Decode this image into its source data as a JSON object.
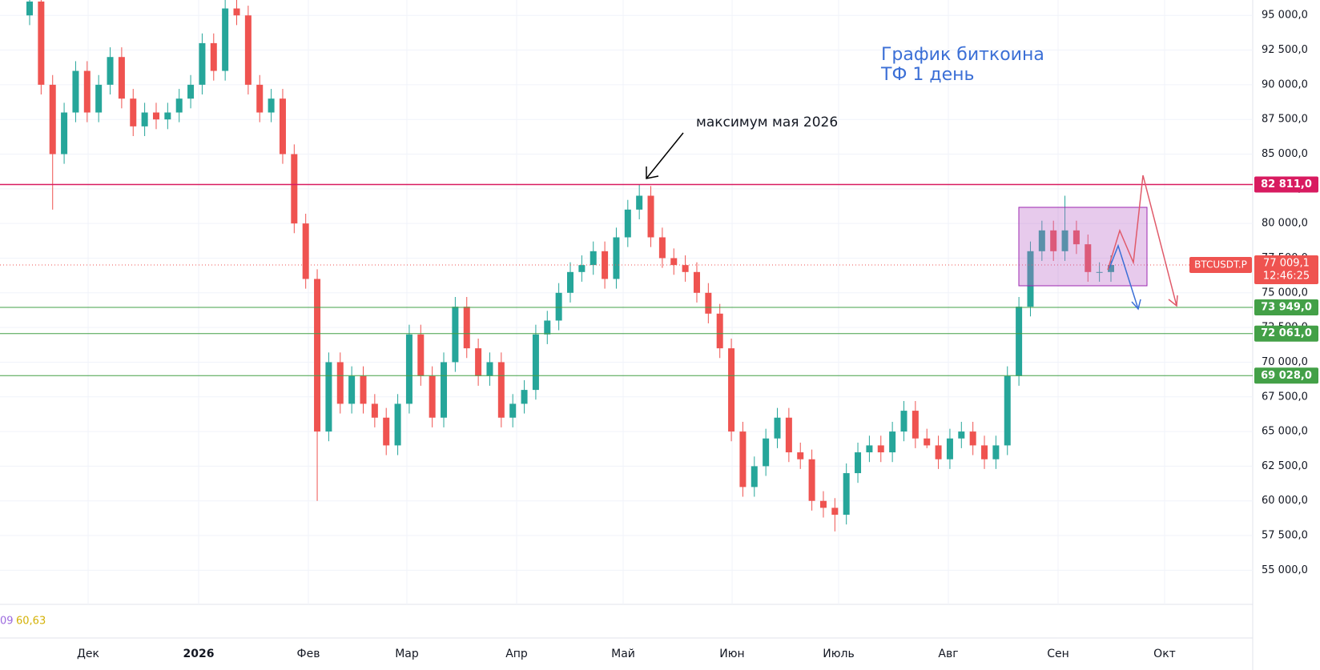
{
  "chart_data": {
    "type": "candlestick",
    "symbol": "BTCUSDT.P",
    "title": "График биткоина",
    "subtitle": "ТФ 1 день",
    "annotation": "максимум мая 2026",
    "indicator": [
      "09",
      "60,63"
    ],
    "months": [
      "Дек",
      "2026",
      "Фев",
      "Мар",
      "Апр",
      "Май",
      "Июн",
      "Июль",
      "Авг",
      "Сен",
      "Окт"
    ],
    "up_color": "#26a69a",
    "down_color": "#ef5350",
    "open": [
      95000,
      96000,
      90000,
      85000,
      88000,
      91000,
      88000,
      90000,
      92000,
      89000,
      87000,
      88000,
      87500,
      88000,
      89000,
      90000,
      93000,
      91000,
      95500,
      95000,
      90000,
      88000,
      89000,
      85000,
      80000,
      76000,
      65000,
      70000,
      67000,
      69000,
      67000,
      66000,
      64000,
      67000,
      72000,
      69000,
      66000,
      70000,
      74000,
      71000,
      69000,
      70000,
      66000,
      67000,
      68000,
      72000,
      73000,
      75000,
      76500,
      77000,
      78000,
      76000,
      79000,
      81000,
      82000,
      79000,
      77500,
      77000,
      76500,
      75000,
      73500,
      71000,
      65000,
      61000,
      62500,
      64500,
      66000,
      63500,
      63000,
      60000,
      59500,
      59000,
      62000,
      63500,
      64000,
      63500,
      65000,
      66500,
      64500,
      64000,
      63000,
      64500,
      65000,
      64000,
      63000,
      64000,
      69000,
      74000,
      78000,
      79500,
      78000,
      79500,
      78500,
      76500,
      76500
    ],
    "high": [
      96700,
      96700,
      90700,
      88700,
      91700,
      91700,
      90700,
      92700,
      92700,
      89700,
      88700,
      88700,
      88700,
      89700,
      90700,
      93700,
      93700,
      96200,
      96200,
      95700,
      90700,
      89700,
      89700,
      85700,
      80700,
      76700,
      70700,
      70700,
      69700,
      69700,
      67700,
      66700,
      67700,
      72700,
      72700,
      69700,
      70700,
      74700,
      74700,
      71700,
      70700,
      70700,
      67700,
      68700,
      72700,
      73700,
      75700,
      77200,
      77700,
      78700,
      78700,
      79700,
      81700,
      82811,
      82700,
      79700,
      78200,
      77700,
      77200,
      75700,
      74200,
      71700,
      65700,
      63200,
      65200,
      66700,
      66700,
      64200,
      63700,
      60700,
      60200,
      62700,
      64200,
      64700,
      64700,
      65700,
      67200,
      67200,
      65200,
      64700,
      65200,
      65700,
      65700,
      64700,
      64700,
      69700,
      74700,
      78700,
      80200,
      80200,
      82000,
      80200,
      79200,
      77200,
      77700
    ],
    "low": [
      94300,
      89300,
      81000,
      84300,
      87300,
      87300,
      87300,
      89300,
      88300,
      86300,
      86300,
      86800,
      86800,
      87300,
      88300,
      89300,
      90300,
      90300,
      94300,
      89300,
      87300,
      87300,
      84300,
      79300,
      75300,
      60000,
      64300,
      66300,
      66300,
      66300,
      65300,
      63300,
      63300,
      66300,
      68300,
      65300,
      65300,
      69300,
      70300,
      68300,
      68300,
      65300,
      65300,
      66300,
      67300,
      71300,
      72300,
      74300,
      75800,
      76300,
      75300,
      75300,
      78300,
      80300,
      78300,
      76800,
      76300,
      75800,
      74300,
      72800,
      70300,
      64300,
      60300,
      60300,
      61800,
      63800,
      62800,
      62300,
      59300,
      58800,
      57800,
      58300,
      61300,
      62800,
      62800,
      62800,
      64300,
      63800,
      63800,
      62300,
      62300,
      63800,
      63300,
      62300,
      62300,
      63300,
      68300,
      73300,
      77300,
      77300,
      77300,
      77800,
      75800,
      75800,
      75800
    ],
    "close": [
      96000,
      90000,
      85000,
      88000,
      91000,
      88000,
      90000,
      92000,
      89000,
      87000,
      88000,
      87500,
      88000,
      89000,
      90000,
      93000,
      91000,
      95500,
      95000,
      90000,
      88000,
      89000,
      85000,
      80000,
      76000,
      65000,
      70000,
      67000,
      69000,
      67000,
      66000,
      64000,
      67000,
      72000,
      69000,
      66000,
      70000,
      74000,
      71000,
      69000,
      70000,
      66000,
      67000,
      68000,
      72000,
      73000,
      75000,
      76500,
      77000,
      78000,
      76000,
      79000,
      81000,
      82000,
      79000,
      77500,
      77000,
      76500,
      75000,
      73500,
      71000,
      65000,
      61000,
      62500,
      64500,
      66000,
      63500,
      63000,
      60000,
      59500,
      59000,
      62000,
      63500,
      64000,
      63500,
      65000,
      66500,
      64500,
      64000,
      63000,
      64500,
      65000,
      64000,
      63000,
      64000,
      69000,
      74000,
      78000,
      79500,
      78000,
      79500,
      78500,
      76500,
      76500,
      77009.1
    ],
    "ylim": [
      52540,
      96110
    ],
    "yticks": [
      {
        "value": 55000,
        "label": "55 000,0"
      },
      {
        "value": 57500,
        "label": "57 500,0"
      },
      {
        "value": 60000,
        "label": "60 000,0"
      },
      {
        "value": 62500,
        "label": "62 500,0"
      },
      {
        "value": 65000,
        "label": "65 000,0"
      },
      {
        "value": 67500,
        "label": "67 500,0"
      },
      {
        "value": 70000,
        "label": "70 000,0"
      },
      {
        "value": 72500,
        "label": "72 500,0"
      },
      {
        "value": 75000,
        "label": "75 000,0"
      },
      {
        "value": 77500,
        "label": "77 500,0"
      },
      {
        "value": 80000,
        "label": "80 000,0"
      },
      {
        "value": 82500,
        "label": "82 500,0"
      },
      {
        "value": 85000,
        "label": "85 000,0"
      },
      {
        "value": 87500,
        "label": "87 500,0"
      },
      {
        "value": 90000,
        "label": "90 000,0"
      },
      {
        "value": 92500,
        "label": "92 500,0"
      },
      {
        "value": 95000,
        "label": "95 000,0"
      }
    ],
    "hlines": [
      {
        "value": 82811,
        "label": "82 811,0",
        "color": "#d81b60"
      },
      {
        "value": 73949,
        "label": "73 949,0",
        "color": "#43a047"
      },
      {
        "value": 72061,
        "label": "72 061,0",
        "color": "#43a047"
      },
      {
        "value": 69028,
        "label": "69 028,0",
        "color": "#43a047"
      }
    ],
    "current": {
      "value": 77009.1,
      "label": "77 009,1",
      "countdown": "12:46:25"
    }
  }
}
